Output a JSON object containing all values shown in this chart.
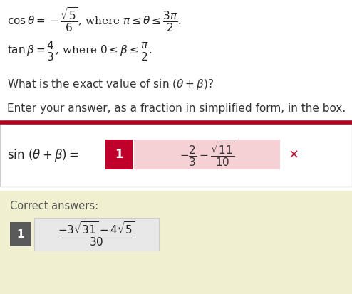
{
  "bg_color": "#ffffff",
  "correct_bg": "#f0f0d0",
  "border_top_color": "#b5001f",
  "answer_box_color": "#c0002a",
  "answer_wrong_highlight": "#f5d0d5",
  "cross_color": "#c0002a",
  "correct_box_color": "#5a5a5a",
  "answer_region_bg": "#ffffff",
  "figw": 4.94,
  "figh": 4.13,
  "dpi": 100
}
